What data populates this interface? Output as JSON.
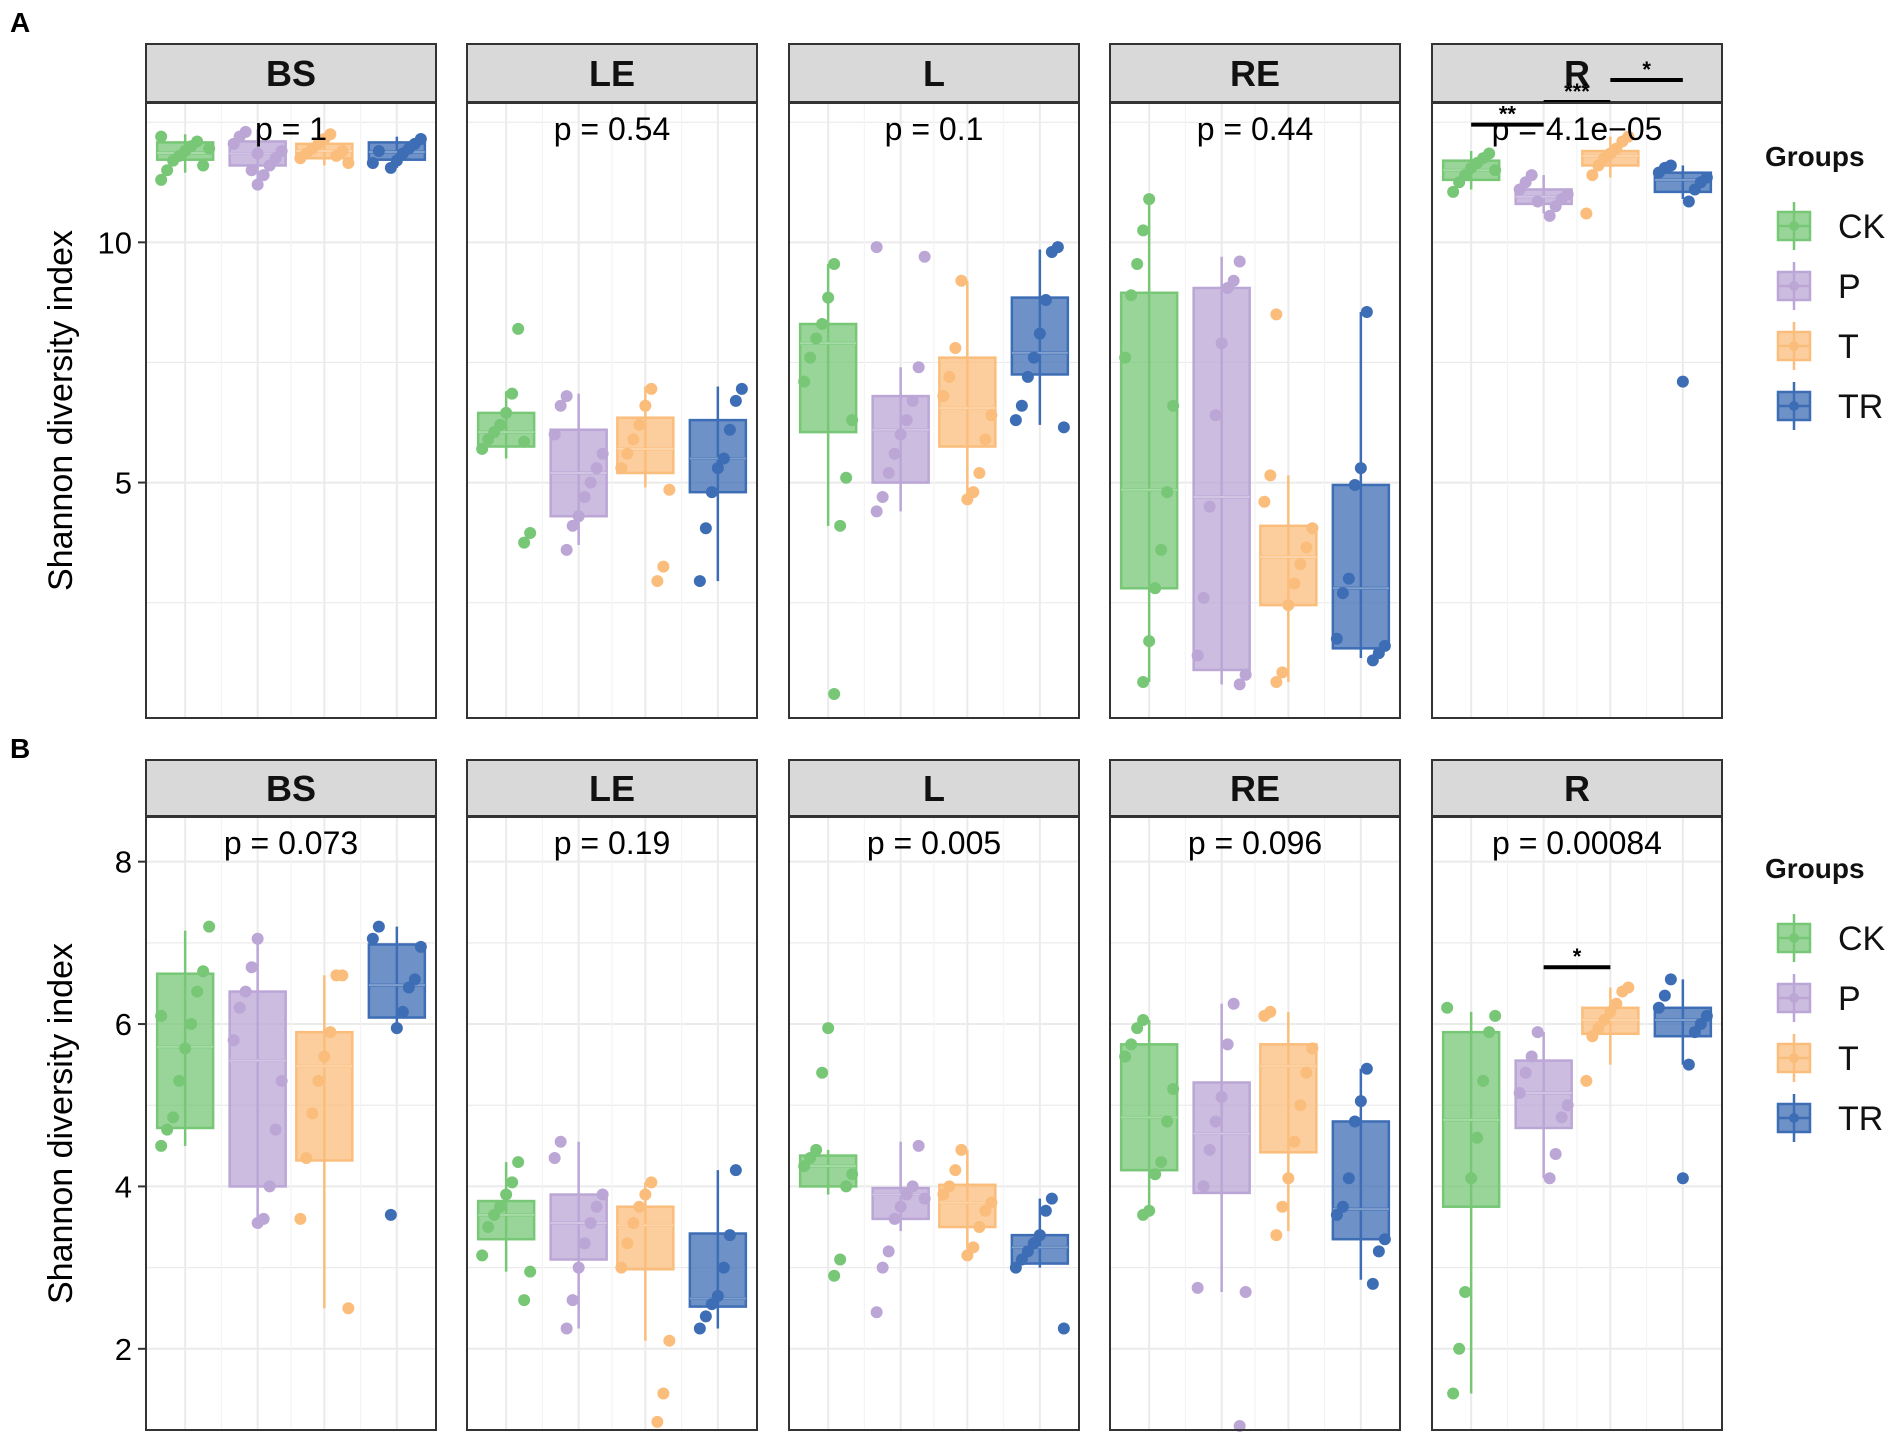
{
  "groups": [
    "CK",
    "P",
    "T",
    "TR"
  ],
  "colors": {
    "CK": "#77c777",
    "P": "#bba6d6",
    "T": "#fbbd7c",
    "TR": "#3d6db4",
    "strip_bg": "#d9d9d9",
    "grid": "#ebebeb",
    "border": "#333333"
  },
  "chart_data": [
    {
      "type": "box",
      "panel_label": "A",
      "ylabel": "Shannon diversity index",
      "ylim": [
        0.1,
        12.9
      ],
      "yticks": [
        5,
        10
      ],
      "legend": {
        "title": "Groups",
        "entries": [
          "CK",
          "P",
          "T",
          "TR"
        ],
        "position": "right"
      },
      "facets": [
        {
          "name": "BS",
          "p_label": "p = 1",
          "sig": [],
          "boxes": {
            "CK": {
              "q1": 11.72,
              "median": 11.86,
              "q3": 12.08,
              "low": 11.45,
              "high": 12.25,
              "points": [
                11.3,
                11.5,
                11.7,
                11.8,
                11.9,
                12.0,
                12.1,
                11.6,
                11.95,
                12.2
              ]
            },
            "P": {
              "q1": 11.6,
              "median": 11.85,
              "q3": 12.1,
              "low": 11.3,
              "high": 12.35,
              "points": [
                11.2,
                11.4,
                11.6,
                11.75,
                11.9,
                12.05,
                12.2,
                12.3,
                11.5,
                11.85
              ]
            },
            "T": {
              "q1": 11.75,
              "median": 11.9,
              "q3": 12.05,
              "low": 11.6,
              "high": 12.25,
              "points": [
                11.65,
                11.75,
                11.85,
                11.95,
                12.05,
                12.15,
                12.25,
                11.8,
                11.9
              ]
            },
            "TR": {
              "q1": 11.72,
              "median": 11.88,
              "q3": 12.08,
              "low": 11.55,
              "high": 12.2,
              "points": [
                11.55,
                11.7,
                11.85,
                11.95,
                12.05,
                12.15,
                11.65,
                11.9
              ]
            }
          }
        },
        {
          "name": "LE",
          "p_label": "p = 0.54",
          "sig": [],
          "boxes": {
            "CK": {
              "q1": 5.75,
              "median": 6.05,
              "q3": 6.45,
              "low": 5.5,
              "high": 6.9,
              "points": [
                3.75,
                3.95,
                5.7,
                5.9,
                6.05,
                6.2,
                6.45,
                6.85,
                8.2,
                5.85
              ]
            },
            "P": {
              "q1": 4.3,
              "median": 5.2,
              "q3": 6.1,
              "low": 3.7,
              "high": 6.85,
              "points": [
                3.6,
                4.1,
                4.3,
                4.7,
                5.0,
                5.3,
                5.6,
                6.0,
                6.6,
                6.8
              ]
            },
            "T": {
              "q1": 5.2,
              "median": 5.7,
              "q3": 6.35,
              "low": 4.9,
              "high": 7.0,
              "points": [
                2.95,
                3.25,
                4.85,
                5.3,
                5.6,
                5.9,
                6.2,
                6.6,
                6.95
              ]
            },
            "TR": {
              "q1": 4.8,
              "median": 5.5,
              "q3": 6.3,
              "low": 2.95,
              "high": 7.0,
              "points": [
                2.95,
                4.05,
                4.8,
                5.3,
                5.5,
                6.1,
                6.7,
                6.95
              ]
            }
          }
        },
        {
          "name": "L",
          "p_label": "p = 0.1",
          "sig": [],
          "boxes": {
            "CK": {
              "q1": 6.05,
              "median": 7.9,
              "q3": 8.3,
              "low": 4.1,
              "high": 9.55,
              "points": [
                0.6,
                4.1,
                5.1,
                6.3,
                7.1,
                7.6,
                8.0,
                8.3,
                8.85,
                9.55
              ]
            },
            "P": {
              "q1": 5.0,
              "median": 6.1,
              "q3": 6.8,
              "low": 4.4,
              "high": 7.4,
              "points": [
                4.4,
                4.7,
                5.2,
                5.6,
                6.0,
                6.3,
                6.7,
                7.4,
                9.7,
                9.9
              ]
            },
            "T": {
              "q1": 5.75,
              "median": 6.55,
              "q3": 7.6,
              "low": 4.7,
              "high": 9.2,
              "points": [
                4.65,
                4.8,
                5.2,
                5.9,
                6.4,
                6.8,
                7.2,
                7.8,
                9.2
              ]
            },
            "TR": {
              "q1": 7.25,
              "median": 7.7,
              "q3": 8.85,
              "low": 6.2,
              "high": 9.85,
              "points": [
                6.15,
                6.3,
                6.6,
                7.2,
                7.6,
                8.1,
                8.8,
                9.8,
                9.9
              ]
            }
          }
        },
        {
          "name": "RE",
          "p_label": "p = 0.44",
          "sig": [],
          "boxes": {
            "CK": {
              "q1": 2.8,
              "median": 4.85,
              "q3": 8.95,
              "low": 0.85,
              "high": 10.9,
              "points": [
                0.85,
                1.7,
                2.8,
                3.6,
                4.8,
                6.6,
                7.6,
                8.9,
                9.55,
                10.25,
                10.9
              ]
            },
            "P": {
              "q1": 1.1,
              "median": 4.7,
              "q3": 9.05,
              "low": 0.8,
              "high": 9.7,
              "points": [
                0.8,
                1.0,
                1.4,
                2.6,
                4.5,
                6.4,
                7.9,
                9.05,
                9.2,
                9.6
              ]
            },
            "T": {
              "q1": 2.45,
              "median": 3.45,
              "q3": 4.1,
              "low": 0.85,
              "high": 5.15,
              "points": [
                0.85,
                1.05,
                2.45,
                2.9,
                3.3,
                3.65,
                4.05,
                4.6,
                5.15,
                8.5
              ]
            },
            "TR": {
              "q1": 1.55,
              "median": 2.8,
              "q3": 4.95,
              "low": 1.35,
              "high": 8.55,
              "points": [
                1.3,
                1.45,
                1.6,
                1.75,
                2.7,
                3.0,
                4.95,
                5.3,
                8.55
              ]
            }
          }
        },
        {
          "name": "R",
          "p_label": "p = 4.1e−05",
          "sig": [
            {
              "from": "CK",
              "to": "P",
              "label": "**",
              "y": 12.45
            },
            {
              "from": "P",
              "to": "T",
              "label": "***",
              "y": 12.92
            },
            {
              "from": "T",
              "to": "TR",
              "label": "*",
              "y": 13.38
            }
          ],
          "boxes": {
            "CK": {
              "q1": 11.3,
              "median": 11.5,
              "q3": 11.7,
              "low": 11.1,
              "high": 11.9,
              "points": [
                11.05,
                11.25,
                11.4,
                11.55,
                11.65,
                11.75,
                11.85,
                11.5
              ]
            },
            "P": {
              "q1": 10.8,
              "median": 10.95,
              "q3": 11.1,
              "low": 10.6,
              "high": 11.4,
              "points": [
                10.55,
                10.75,
                10.9,
                11.0,
                11.1,
                11.25,
                11.4,
                10.85
              ]
            },
            "T": {
              "q1": 11.6,
              "median": 11.8,
              "q3": 11.9,
              "low": 11.35,
              "high": 12.2,
              "points": [
                10.6,
                11.4,
                11.6,
                11.75,
                11.85,
                11.95,
                12.1,
                12.2
              ]
            },
            "TR": {
              "q1": 11.05,
              "median": 11.3,
              "q3": 11.45,
              "low": 10.9,
              "high": 11.6,
              "points": [
                7.1,
                10.85,
                11.1,
                11.25,
                11.35,
                11.45,
                11.55,
                11.6
              ]
            }
          }
        }
      ]
    },
    {
      "type": "box",
      "panel_label": "B",
      "ylabel": "Shannon diversity index",
      "ylim": [
        1.0,
        8.55
      ],
      "yticks": [
        2,
        4,
        6,
        8
      ],
      "legend": {
        "title": "Groups",
        "entries": [
          "CK",
          "P",
          "T",
          "TR"
        ],
        "position": "right"
      },
      "facets": [
        {
          "name": "BS",
          "p_label": "p = 0.073",
          "sig": [],
          "boxes": {
            "CK": {
              "q1": 4.72,
              "median": 5.72,
              "q3": 6.62,
              "low": 4.5,
              "high": 7.15,
              "points": [
                4.5,
                4.7,
                4.85,
                5.3,
                5.7,
                6.0,
                6.4,
                6.65,
                7.2,
                6.1
              ]
            },
            "P": {
              "q1": 4.0,
              "median": 5.55,
              "q3": 6.4,
              "low": 3.6,
              "high": 7.0,
              "points": [
                3.55,
                3.6,
                4.0,
                4.7,
                5.3,
                5.8,
                6.2,
                6.4,
                6.7,
                7.05
              ]
            },
            "T": {
              "q1": 4.32,
              "median": 5.48,
              "q3": 5.9,
              "low": 2.5,
              "high": 6.6,
              "points": [
                2.5,
                3.6,
                4.35,
                4.9,
                5.3,
                5.6,
                5.9,
                6.6,
                6.6
              ]
            },
            "TR": {
              "q1": 6.08,
              "median": 6.48,
              "q3": 6.98,
              "low": 5.95,
              "high": 7.2,
              "points": [
                3.65,
                5.95,
                6.15,
                6.45,
                6.55,
                6.95,
                7.05,
                7.2
              ]
            }
          }
        },
        {
          "name": "LE",
          "p_label": "p = 0.19",
          "sig": [],
          "boxes": {
            "CK": {
              "q1": 3.35,
              "median": 3.65,
              "q3": 3.82,
              "low": 2.95,
              "high": 4.3,
              "points": [
                2.6,
                2.95,
                3.15,
                3.5,
                3.65,
                3.75,
                3.9,
                4.05,
                4.3
              ]
            },
            "P": {
              "q1": 3.1,
              "median": 3.55,
              "q3": 3.9,
              "low": 2.25,
              "high": 4.55,
              "points": [
                2.25,
                2.6,
                3.0,
                3.3,
                3.55,
                3.75,
                3.9,
                4.35,
                4.55
              ]
            },
            "T": {
              "q1": 2.98,
              "median": 3.52,
              "q3": 3.75,
              "low": 2.1,
              "high": 4.05,
              "points": [
                1.1,
                1.45,
                2.1,
                3.0,
                3.3,
                3.55,
                3.75,
                3.9,
                4.05
              ]
            },
            "TR": {
              "q1": 2.52,
              "median": 2.62,
              "q3": 3.42,
              "low": 2.25,
              "high": 4.2,
              "points": [
                2.25,
                2.4,
                2.55,
                2.65,
                3.0,
                3.4,
                4.2
              ]
            }
          }
        },
        {
          "name": "L",
          "p_label": "p = 0.005",
          "sig": [],
          "boxes": {
            "CK": {
              "q1": 4.0,
              "median": 4.25,
              "q3": 4.38,
              "low": 3.9,
              "high": 4.45,
              "points": [
                2.9,
                3.1,
                4.0,
                4.15,
                4.25,
                4.35,
                4.45,
                5.4,
                5.95
              ]
            },
            "P": {
              "q1": 3.6,
              "median": 3.9,
              "q3": 3.98,
              "low": 3.45,
              "high": 4.55,
              "points": [
                2.45,
                3.0,
                3.2,
                3.6,
                3.75,
                3.9,
                4.0,
                4.5,
                3.85
              ]
            },
            "T": {
              "q1": 3.5,
              "median": 3.8,
              "q3": 4.02,
              "low": 3.2,
              "high": 4.45,
              "points": [
                3.15,
                3.25,
                3.5,
                3.7,
                3.8,
                3.9,
                4.0,
                4.2,
                4.45
              ]
            },
            "TR": {
              "q1": 3.05,
              "median": 3.25,
              "q3": 3.4,
              "low": 3.0,
              "high": 3.85,
              "points": [
                2.25,
                3.0,
                3.1,
                3.2,
                3.3,
                3.4,
                3.7,
                3.85
              ]
            }
          }
        },
        {
          "name": "RE",
          "p_label": "p = 0.096",
          "sig": [],
          "boxes": {
            "CK": {
              "q1": 4.2,
              "median": 4.85,
              "q3": 5.75,
              "low": 3.7,
              "high": 6.05,
              "points": [
                3.65,
                3.7,
                4.15,
                4.3,
                4.8,
                5.2,
                5.6,
                5.75,
                5.95,
                6.05
              ]
            },
            "P": {
              "q1": 3.92,
              "median": 4.65,
              "q3": 5.28,
              "low": 2.7,
              "high": 6.25,
              "points": [
                1.05,
                2.7,
                2.75,
                4.0,
                4.45,
                4.8,
                5.1,
                5.75,
                6.25
              ]
            },
            "T": {
              "q1": 4.42,
              "median": 5.48,
              "q3": 5.75,
              "low": 3.45,
              "high": 6.15,
              "points": [
                3.4,
                3.75,
                4.1,
                4.55,
                5.0,
                5.4,
                5.7,
                6.1,
                6.15
              ]
            },
            "TR": {
              "q1": 3.35,
              "median": 3.72,
              "q3": 4.8,
              "low": 2.85,
              "high": 5.45,
              "points": [
                2.8,
                3.2,
                3.35,
                3.65,
                3.75,
                4.1,
                4.8,
                5.05,
                5.45
              ]
            }
          }
        },
        {
          "name": "R",
          "p_label": "p = 0.00084",
          "sig": [
            {
              "from": "P",
              "to": "T",
              "label": "*",
              "y": 6.7
            }
          ],
          "boxes": {
            "CK": {
              "q1": 3.75,
              "median": 4.82,
              "q3": 5.9,
              "low": 1.45,
              "high": 6.15,
              "points": [
                1.45,
                2.0,
                2.7,
                4.1,
                4.6,
                5.3,
                5.9,
                6.1,
                6.2
              ]
            },
            "P": {
              "q1": 4.72,
              "median": 5.15,
              "q3": 5.55,
              "low": 4.1,
              "high": 5.9,
              "points": [
                4.1,
                4.4,
                4.85,
                5.0,
                5.15,
                5.4,
                5.6,
                5.9
              ]
            },
            "T": {
              "q1": 5.88,
              "median": 6.05,
              "q3": 6.2,
              "low": 5.5,
              "high": 6.45,
              "points": [
                5.3,
                5.85,
                5.95,
                6.05,
                6.15,
                6.25,
                6.4,
                6.45
              ]
            },
            "TR": {
              "q1": 5.85,
              "median": 6.05,
              "q3": 6.2,
              "low": 5.5,
              "high": 6.55,
              "points": [
                4.1,
                5.5,
                5.9,
                6.0,
                6.1,
                6.2,
                6.35,
                6.55
              ]
            }
          }
        }
      ]
    }
  ]
}
